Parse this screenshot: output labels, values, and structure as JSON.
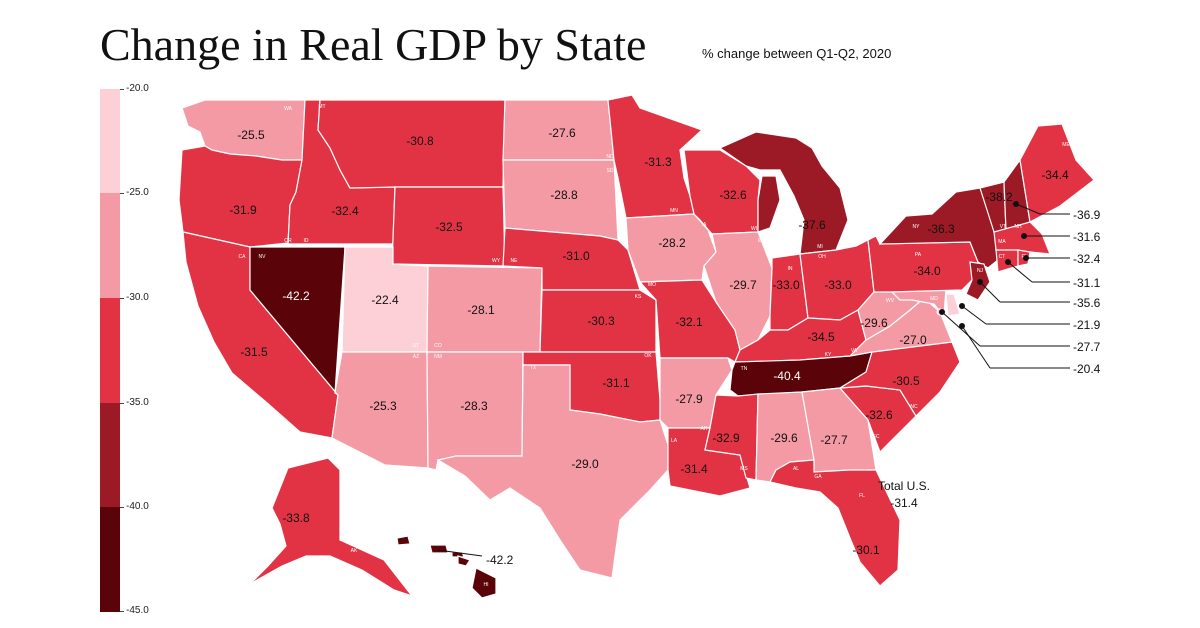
{
  "title": "Change in Real GDP by State",
  "subtitle": "% change between Q1-Q2, 2020",
  "legend": {
    "ticks": [
      "-20.0",
      "-25.0",
      "-30.0",
      "-35.0",
      "-40.0",
      "-45.0"
    ],
    "bins": [
      {
        "range": "-20 to -25",
        "color": "#fcd0d6"
      },
      {
        "range": "-25 to -30",
        "color": "#f49aa5"
      },
      {
        "range": "-30 to -35",
        "color": "#e23345"
      },
      {
        "range": "-35 to -40",
        "color": "#9c1a26"
      },
      {
        "range": "-40 to -45",
        "color": "#5a0409"
      }
    ]
  },
  "total": {
    "label": "Total U.S.",
    "value": "-31.4"
  },
  "states": {
    "WA": "-25.5",
    "OR": "-31.9",
    "CA": "-31.5",
    "NV": "-42.2",
    "ID": "-32.4",
    "MT": "-30.8",
    "WY": "-32.5",
    "UT": "-22.4",
    "AZ": "-25.3",
    "CO": "-28.1",
    "NM": "-28.3",
    "ND": "-27.6",
    "SD": "-28.8",
    "NE": "-31.0",
    "KS": "-30.3",
    "OK": "-31.1",
    "TX": "-29.0",
    "MN": "-31.3",
    "IA": "-28.2",
    "MO": "-32.1",
    "AR": "-27.9",
    "LA": "-31.4",
    "WI": "-32.6",
    "IL": "-29.7",
    "MI": "-37.6",
    "IN": "-33.0",
    "OH": "-33.0",
    "KY": "-34.5",
    "TN": "-40.4",
    "MS": "-32.9",
    "AL": "-29.6",
    "GA": "-27.7",
    "FL": "-30.1",
    "SC": "-32.6",
    "NC": "-30.5",
    "VA": "-27.0",
    "WV": "-29.6",
    "PA": "-34.0",
    "NY": "-36.3",
    "VT": "-38.2",
    "ME": "-34.4",
    "AK": "-33.8",
    "HI": "-42.2",
    "NH": "-36.9",
    "MA": "-31.6",
    "RI": "-32.4",
    "CT": "-31.1",
    "NJ": "-35.6",
    "DE": "-21.9",
    "MD": "-27.7",
    "DC": "-20.4"
  },
  "abbrev": [
    "WA",
    "OR",
    "ID",
    "CA",
    "NV",
    "MT",
    "WY",
    "UT",
    "CO",
    "AZ",
    "NM",
    "ND",
    "SD",
    "NE",
    "KS",
    "OK",
    "TX",
    "MN",
    "IA",
    "MO",
    "AR",
    "LA",
    "WI",
    "IL",
    "MI",
    "IN",
    "OH",
    "KY",
    "TN",
    "MS",
    "AL",
    "GA",
    "FL",
    "SC",
    "NC",
    "VA",
    "WV",
    "MD",
    "PA",
    "NY",
    "VT",
    "NH",
    "MA",
    "CT",
    "RI",
    "NJ",
    "ME",
    "AK",
    "HI"
  ]
}
